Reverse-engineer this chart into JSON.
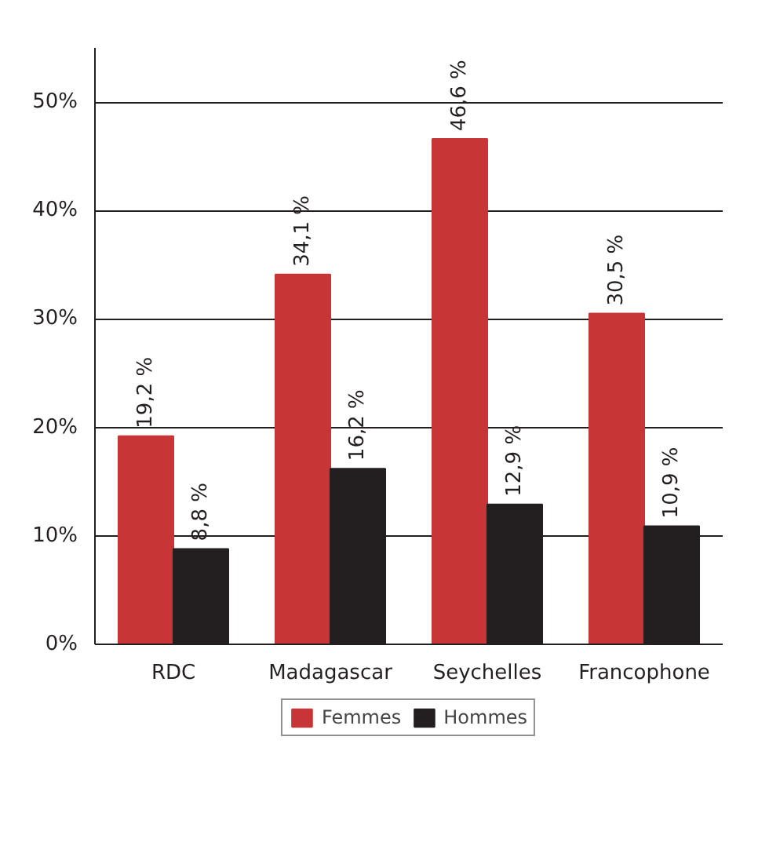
{
  "chart_data": {
    "type": "bar",
    "categories": [
      "RDC",
      "Madagascar",
      "Seychelles",
      "Francophone"
    ],
    "series": [
      {
        "name": "Femmes",
        "color": "#c83536",
        "values": [
          19.2,
          34.1,
          46.6,
          30.5
        ],
        "value_labels": [
          "19,2 %",
          "34,1 %",
          "46,6 %",
          "30,5 %"
        ]
      },
      {
        "name": "Hommes",
        "color": "#231f20",
        "values": [
          8.8,
          16.2,
          12.9,
          10.9
        ],
        "value_labels": [
          "8,8 %",
          "16,2 %",
          "12,9 %",
          "10,9 %"
        ]
      }
    ],
    "ylim": [
      0,
      55
    ],
    "yticks": [
      {
        "value": 0,
        "label": "0%"
      },
      {
        "value": 10,
        "label": "10%"
      },
      {
        "value": 20,
        "label": "20%"
      },
      {
        "value": 30,
        "label": "30%"
      },
      {
        "value": 40,
        "label": "40%"
      },
      {
        "value": 50,
        "label": "50%"
      }
    ],
    "grid": "y",
    "legend": "bottom"
  }
}
